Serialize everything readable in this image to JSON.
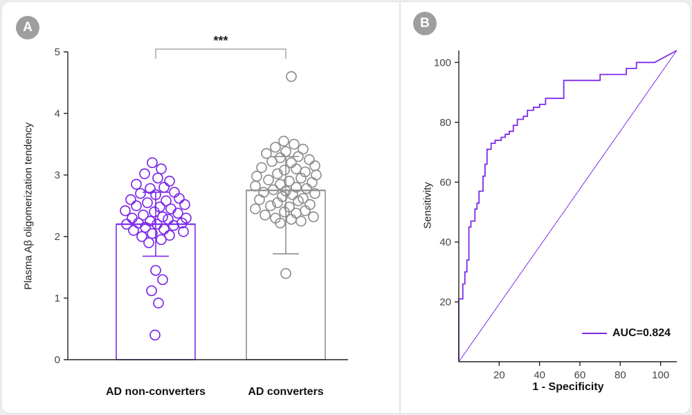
{
  "panels": [
    {
      "label": "A"
    },
    {
      "label": "B"
    }
  ],
  "colors": {
    "purple": "#7c2ae8",
    "gray": "#8f8f8f",
    "axis": "#222222",
    "tick_text": "#444444",
    "badge": "#9e9e9e",
    "bracket": "#9a9a9a"
  },
  "chart_data": [
    {
      "type": "scatter",
      "panel": "A",
      "ylabel": "Plasma Aβ oligomerization tendency",
      "ylim": [
        0,
        5
      ],
      "yticks": [
        0,
        1,
        2,
        3,
        4,
        5
      ],
      "significance": "***",
      "groups": [
        {
          "name": "AD non-converters",
          "color": "#7c2ae8",
          "mean": 2.2,
          "error_low": 1.68,
          "error_high": 2.72,
          "points": [
            [
              -5,
              3.2
            ],
            [
              8,
              3.1
            ],
            [
              -16,
              3.02
            ],
            [
              3,
              2.95
            ],
            [
              20,
              2.9
            ],
            [
              -28,
              2.85
            ],
            [
              12,
              2.8
            ],
            [
              -8,
              2.78
            ],
            [
              27,
              2.72
            ],
            [
              -22,
              2.7
            ],
            [
              0,
              2.68
            ],
            [
              34,
              2.62
            ],
            [
              -36,
              2.6
            ],
            [
              15,
              2.58
            ],
            [
              -12,
              2.55
            ],
            [
              42,
              2.52
            ],
            [
              -28,
              2.5
            ],
            [
              6,
              2.48
            ],
            [
              22,
              2.45
            ],
            [
              -44,
              2.42
            ],
            [
              -2,
              2.4
            ],
            [
              32,
              2.38
            ],
            [
              -18,
              2.35
            ],
            [
              10,
              2.32
            ],
            [
              44,
              2.3
            ],
            [
              -34,
              2.3
            ],
            [
              18,
              2.28
            ],
            [
              -8,
              2.25
            ],
            [
              38,
              2.22
            ],
            [
              -25,
              2.22
            ],
            [
              2,
              2.2
            ],
            [
              -42,
              2.2
            ],
            [
              26,
              2.18
            ],
            [
              -15,
              2.15
            ],
            [
              12,
              2.12
            ],
            [
              -32,
              2.1
            ],
            [
              40,
              2.08
            ],
            [
              -5,
              2.05
            ],
            [
              20,
              2.02
            ],
            [
              -20,
              2.0
            ],
            [
              8,
              1.95
            ],
            [
              -10,
              1.9
            ],
            [
              0,
              1.45
            ],
            [
              10,
              1.3
            ],
            [
              -6,
              1.12
            ],
            [
              4,
              0.92
            ],
            [
              -1,
              0.4
            ]
          ]
        },
        {
          "name": "AD converters",
          "color": "#8f8f8f",
          "mean": 2.75,
          "error_low": 1.72,
          "error_high": 3.3,
          "points": [
            [
              8,
              4.6
            ],
            [
              -3,
              3.55
            ],
            [
              12,
              3.5
            ],
            [
              -15,
              3.45
            ],
            [
              25,
              3.42
            ],
            [
              0,
              3.38
            ],
            [
              -28,
              3.35
            ],
            [
              18,
              3.3
            ],
            [
              -8,
              3.28
            ],
            [
              34,
              3.25
            ],
            [
              -20,
              3.22
            ],
            [
              8,
              3.2
            ],
            [
              42,
              3.15
            ],
            [
              -35,
              3.12
            ],
            [
              15,
              3.1
            ],
            [
              -2,
              3.08
            ],
            [
              28,
              3.05
            ],
            [
              -12,
              3.02
            ],
            [
              44,
              3.0
            ],
            [
              -42,
              2.98
            ],
            [
              22,
              2.95
            ],
            [
              -25,
              2.92
            ],
            [
              5,
              2.9
            ],
            [
              38,
              2.88
            ],
            [
              -8,
              2.85
            ],
            [
              -44,
              2.82
            ],
            [
              15,
              2.8
            ],
            [
              30,
              2.78
            ],
            [
              -18,
              2.76
            ],
            [
              0,
              2.74
            ],
            [
              -32,
              2.72
            ],
            [
              42,
              2.7
            ],
            [
              10,
              2.68
            ],
            [
              -5,
              2.65
            ],
            [
              25,
              2.62
            ],
            [
              -38,
              2.6
            ],
            [
              18,
              2.58
            ],
            [
              -12,
              2.55
            ],
            [
              35,
              2.52
            ],
            [
              -22,
              2.5
            ],
            [
              5,
              2.48
            ],
            [
              -44,
              2.45
            ],
            [
              28,
              2.42
            ],
            [
              -2,
              2.4
            ],
            [
              15,
              2.38
            ],
            [
              -30,
              2.35
            ],
            [
              40,
              2.32
            ],
            [
              -15,
              2.3
            ],
            [
              8,
              2.28
            ],
            [
              22,
              2.25
            ],
            [
              -8,
              2.22
            ],
            [
              0,
              1.4
            ]
          ]
        }
      ]
    },
    {
      "type": "line",
      "panel": "B",
      "xlabel": "1 - Specificity",
      "ylabel": "Sensitivity",
      "xlim": [
        0,
        108
      ],
      "ylim": [
        0,
        104
      ],
      "xticks": [
        20,
        40,
        60,
        80,
        100
      ],
      "yticks": [
        20,
        40,
        60,
        80,
        100
      ],
      "diagonal": true,
      "legend": [
        {
          "label": "AUC=0.824",
          "color": "#7c2ae8"
        }
      ],
      "roc": [
        [
          0,
          0
        ],
        [
          0,
          21
        ],
        [
          2,
          21
        ],
        [
          2,
          26
        ],
        [
          3,
          26
        ],
        [
          3,
          30
        ],
        [
          4,
          30
        ],
        [
          4,
          34
        ],
        [
          5,
          34
        ],
        [
          5,
          45
        ],
        [
          6,
          45
        ],
        [
          6,
          47
        ],
        [
          8,
          47
        ],
        [
          8,
          51
        ],
        [
          9,
          51
        ],
        [
          9,
          53
        ],
        [
          10,
          53
        ],
        [
          10,
          57
        ],
        [
          12,
          57
        ],
        [
          12,
          62
        ],
        [
          13,
          62
        ],
        [
          13,
          66
        ],
        [
          14,
          66
        ],
        [
          14,
          71
        ],
        [
          16,
          71
        ],
        [
          16,
          73
        ],
        [
          18,
          73
        ],
        [
          18,
          74
        ],
        [
          21,
          74
        ],
        [
          21,
          75
        ],
        [
          23,
          75
        ],
        [
          23,
          76
        ],
        [
          25,
          76
        ],
        [
          25,
          77
        ],
        [
          27,
          77
        ],
        [
          27,
          79
        ],
        [
          29,
          79
        ],
        [
          29,
          81
        ],
        [
          32,
          81
        ],
        [
          32,
          82
        ],
        [
          34,
          82
        ],
        [
          34,
          84
        ],
        [
          37,
          84
        ],
        [
          37,
          85
        ],
        [
          40,
          85
        ],
        [
          40,
          86
        ],
        [
          43,
          86
        ],
        [
          43,
          88
        ],
        [
          46,
          88
        ],
        [
          52,
          88
        ],
        [
          52,
          94
        ],
        [
          58,
          94
        ],
        [
          70,
          94
        ],
        [
          70,
          96
        ],
        [
          83,
          96
        ],
        [
          83,
          98
        ],
        [
          88,
          98
        ],
        [
          88,
          100
        ],
        [
          97,
          100
        ],
        [
          108,
          104
        ]
      ]
    }
  ]
}
